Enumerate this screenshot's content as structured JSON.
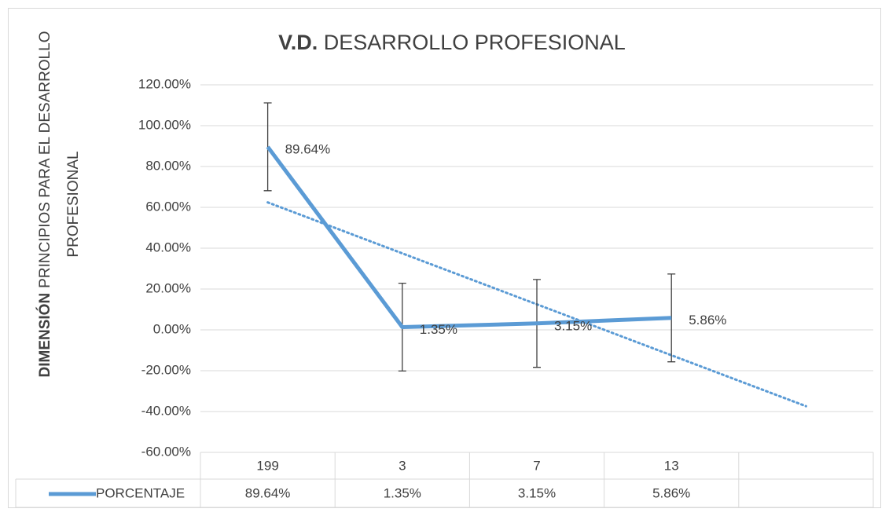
{
  "chart_data": {
    "type": "line",
    "title": {
      "bold": "V.D.",
      "rest": " DESARROLLO PROFESIONAL"
    },
    "ylabel": {
      "bold": "DIMENSIÓN",
      "lines": [
        "PRINCIPIOS PARA EL DESARROLLO",
        "PROFESIONAL"
      ]
    },
    "categories": [
      "199",
      "3",
      "7",
      "13",
      null
    ],
    "series": [
      {
        "name": "PORCENTAJE",
        "color": "#5b9bd5",
        "values": [
          89.64,
          1.35,
          3.15,
          5.86,
          null
        ],
        "value_labels": [
          "89.64%",
          "1.35%",
          "3.15%",
          "5.86%",
          null
        ],
        "errors": [
          21.5,
          21.5,
          21.5,
          21.5,
          null
        ]
      }
    ],
    "trendline": {
      "color": "#5b9bd5",
      "values": [
        62.43,
        37.47,
        12.52,
        -12.43,
        -37.38
      ]
    },
    "ylim": [
      -60,
      120
    ],
    "yticks": [
      {
        "value": -60,
        "label": "-60.00%"
      },
      {
        "value": -40,
        "label": "-40.00%"
      },
      {
        "value": -20,
        "label": "-20.00%"
      },
      {
        "value": 0,
        "label": "0.00%"
      },
      {
        "value": 20,
        "label": "20.00%"
      },
      {
        "value": 40,
        "label": "40.00%"
      },
      {
        "value": 60,
        "label": "60.00%"
      },
      {
        "value": 80,
        "label": "80.00%"
      },
      {
        "value": 100,
        "label": "100.00%"
      },
      {
        "value": 120,
        "label": "120.00%"
      }
    ],
    "grid": true,
    "data_table": true
  }
}
